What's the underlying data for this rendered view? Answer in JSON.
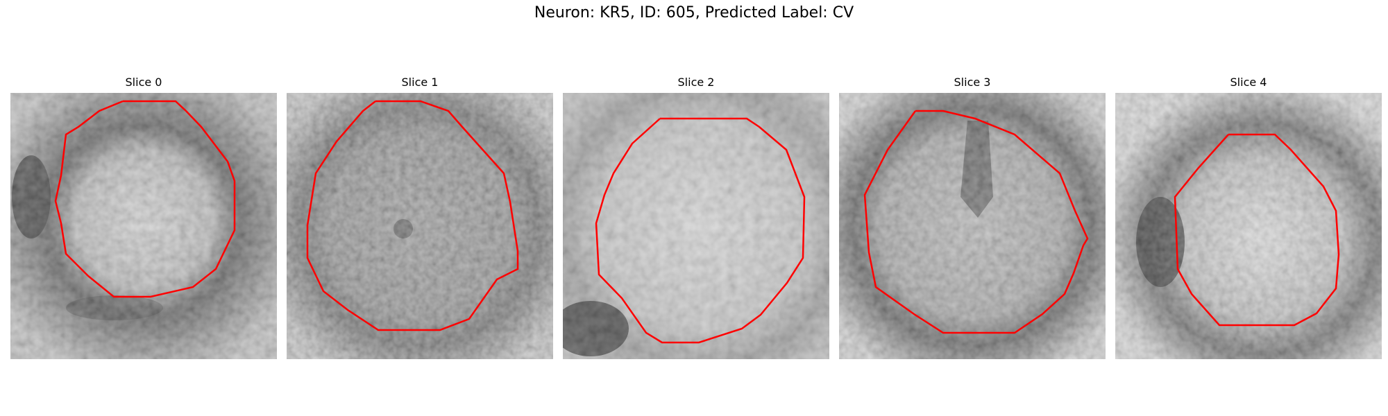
{
  "figure": {
    "title": "Neuron: KR5, ID: 605, Predicted Label: CV"
  },
  "panels": [
    {
      "title": "Slice 0"
    },
    {
      "title": "Slice 1"
    },
    {
      "title": "Slice 2"
    },
    {
      "title": "Slice 3"
    },
    {
      "title": "Slice 4"
    }
  ],
  "colors": {
    "contour": "#ff0000",
    "background": "#ffffff"
  }
}
